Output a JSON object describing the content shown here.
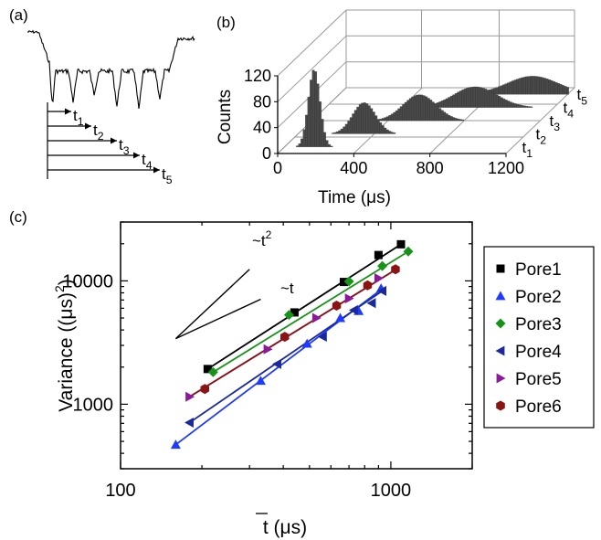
{
  "chart_data": [
    {
      "panel_label": "(a)",
      "type": "line",
      "description_items": [
        "t1",
        "t2",
        "t3",
        "t4",
        "t5"
      ],
      "t_labels": [
        {
          "base": "t",
          "sub": "1"
        },
        {
          "base": "t",
          "sub": "2"
        },
        {
          "base": "t",
          "sub": "3"
        },
        {
          "base": "t",
          "sub": "4"
        },
        {
          "base": "t",
          "sub": "5"
        }
      ]
    },
    {
      "panel_label": "(b)",
      "type": "bar",
      "xlabel": "Time (μs)",
      "ylabel": "Counts",
      "x_ticks": [
        "0",
        "400",
        "800",
        "1200"
      ],
      "y_ticks": [
        "0",
        "40",
        "80",
        "120"
      ],
      "xlim": [
        0,
        1200
      ],
      "ylim": [
        0,
        120
      ],
      "depth_labels": [
        {
          "base": "t",
          "sub": "1"
        },
        {
          "base": "t",
          "sub": "2"
        },
        {
          "base": "t",
          "sub": "3"
        },
        {
          "base": "t",
          "sub": "4"
        },
        {
          "base": "t",
          "sub": "5"
        }
      ],
      "series": [
        {
          "name": "t1",
          "peak_center": 150,
          "peak_height": 120,
          "width": 45
        },
        {
          "name": "t2",
          "peak_center": 340,
          "peak_height": 48,
          "width": 90
        },
        {
          "name": "t3",
          "peak_center": 560,
          "peak_height": 40,
          "width": 130
        },
        {
          "name": "t4",
          "peak_center": 780,
          "peak_height": 32,
          "width": 170
        },
        {
          "name": "t5",
          "peak_center": 1010,
          "peak_height": 28,
          "width": 200
        }
      ]
    },
    {
      "panel_label": "(c)",
      "type": "scatter",
      "xlabel_base": "t",
      "xlabel_rest": " (μs)",
      "ylabel": "Variance ((μs)",
      "ylabel_sup": "2",
      "ylabel_end": ")",
      "x_scale": "log",
      "y_scale": "log",
      "xlim": [
        100,
        2000
      ],
      "ylim": [
        300,
        30000
      ],
      "x_ticks": [
        {
          "v": 100,
          "label": "100"
        },
        {
          "v": 1000,
          "label": "1000"
        }
      ],
      "y_ticks": [
        {
          "v": 1000,
          "label": "1000"
        },
        {
          "v": 10000,
          "label": "10000"
        }
      ],
      "annotations": {
        "t2": "~t",
        "t2_sup": "2",
        "t1": "~t"
      },
      "guide_lines": [
        {
          "name": "t2",
          "x": [
            160,
            300
          ],
          "y": [
            3400,
            12400
          ]
        },
        {
          "name": "t1",
          "x": [
            160,
            330
          ],
          "y": [
            3400,
            7100
          ]
        }
      ],
      "series": [
        {
          "name": "Pore1",
          "color": "#000000",
          "marker": "square",
          "x": [
            210,
            440,
            670,
            900,
            1090
          ],
          "y": [
            1930,
            5550,
            9800,
            16200,
            19800
          ],
          "fit_x": [
            210,
            1090
          ],
          "fit_y": [
            1930,
            19800
          ]
        },
        {
          "name": "Pore2",
          "color": "#1f3bff",
          "marker": "triangle-up",
          "x": [
            160,
            330,
            490,
            650,
            760,
            920
          ],
          "y": [
            470,
            1550,
            3100,
            5000,
            5700,
            8700
          ],
          "fit_x": [
            160,
            920
          ],
          "fit_y": [
            470,
            8500
          ]
        },
        {
          "name": "Pore3",
          "color": "#17931a",
          "marker": "diamond",
          "x": [
            220,
            420,
            700,
            930,
            1160
          ],
          "y": [
            1820,
            5300,
            9900,
            13200,
            17300
          ],
          "fit_x": [
            220,
            1160
          ],
          "fit_y": [
            1820,
            17300
          ]
        },
        {
          "name": "Pore4",
          "color": "#1a2a9c",
          "marker": "triangle-left",
          "x": [
            180,
            380,
            560,
            730,
            850,
            930
          ],
          "y": [
            710,
            2120,
            3530,
            5800,
            6600,
            8300
          ],
          "fit_x": [
            180,
            930
          ],
          "fit_y": [
            710,
            8300
          ]
        },
        {
          "name": "Pore5",
          "color": "#8a1a9a",
          "marker": "triangle-right",
          "x": [
            180,
            350,
            530,
            700,
            900
          ],
          "y": [
            1150,
            2790,
            5000,
            7200,
            10500
          ],
          "fit_x": [
            180,
            1040
          ],
          "fit_y": [
            1150,
            12300
          ]
        },
        {
          "name": "Pore6",
          "color": "#8a1414",
          "marker": "hexagon",
          "x": [
            205,
            405,
            630,
            820,
            1040
          ],
          "y": [
            1330,
            3520,
            6300,
            9200,
            12400
          ],
          "fit_x": [
            180,
            1040
          ],
          "fit_y": [
            1150,
            12300
          ]
        }
      ],
      "legend_placement": "right"
    }
  ]
}
